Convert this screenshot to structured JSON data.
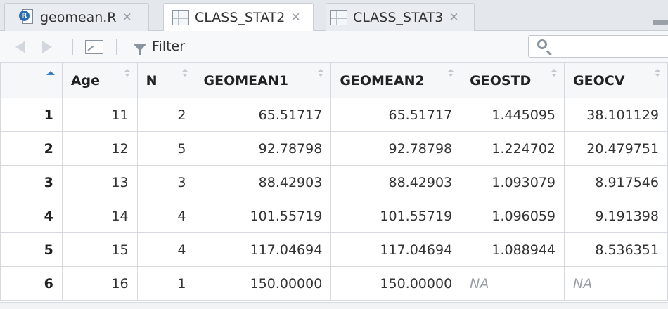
{
  "tabs": [
    {
      "label": "geomean.R",
      "icon": "r-file-icon",
      "close": "✕",
      "active": false
    },
    {
      "label": "CLASS_STAT2",
      "icon": "data-grid-icon",
      "close": "✕",
      "active": true
    },
    {
      "label": "CLASS_STAT3",
      "icon": "data-grid-icon",
      "close": "✕",
      "active": false
    }
  ],
  "toolbar": {
    "filter_label": "Filter",
    "search_placeholder": ""
  },
  "table": {
    "columns": [
      "Age",
      "N",
      "GEOMEAN1",
      "GEOMEAN2",
      "GEOSTD",
      "GEOCV"
    ],
    "rows": [
      {
        "num": "1",
        "cells": [
          "11",
          "2",
          "65.51717",
          "65.51717",
          "1.445095",
          "38.101129"
        ]
      },
      {
        "num": "2",
        "cells": [
          "12",
          "5",
          "92.78798",
          "92.78798",
          "1.224702",
          "20.479751"
        ]
      },
      {
        "num": "3",
        "cells": [
          "13",
          "3",
          "88.42903",
          "88.42903",
          "1.093079",
          "8.917546"
        ]
      },
      {
        "num": "4",
        "cells": [
          "14",
          "4",
          "101.55719",
          "101.55719",
          "1.096059",
          "9.191398"
        ]
      },
      {
        "num": "5",
        "cells": [
          "15",
          "4",
          "117.04694",
          "117.04694",
          "1.088944",
          "8.536351"
        ]
      },
      {
        "num": "6",
        "cells": [
          "16",
          "1",
          "150.00000",
          "150.00000",
          "NA",
          "NA"
        ]
      }
    ]
  },
  "colors": {
    "accent": "#3a7dcc",
    "na_text": "#9aa0a8"
  }
}
